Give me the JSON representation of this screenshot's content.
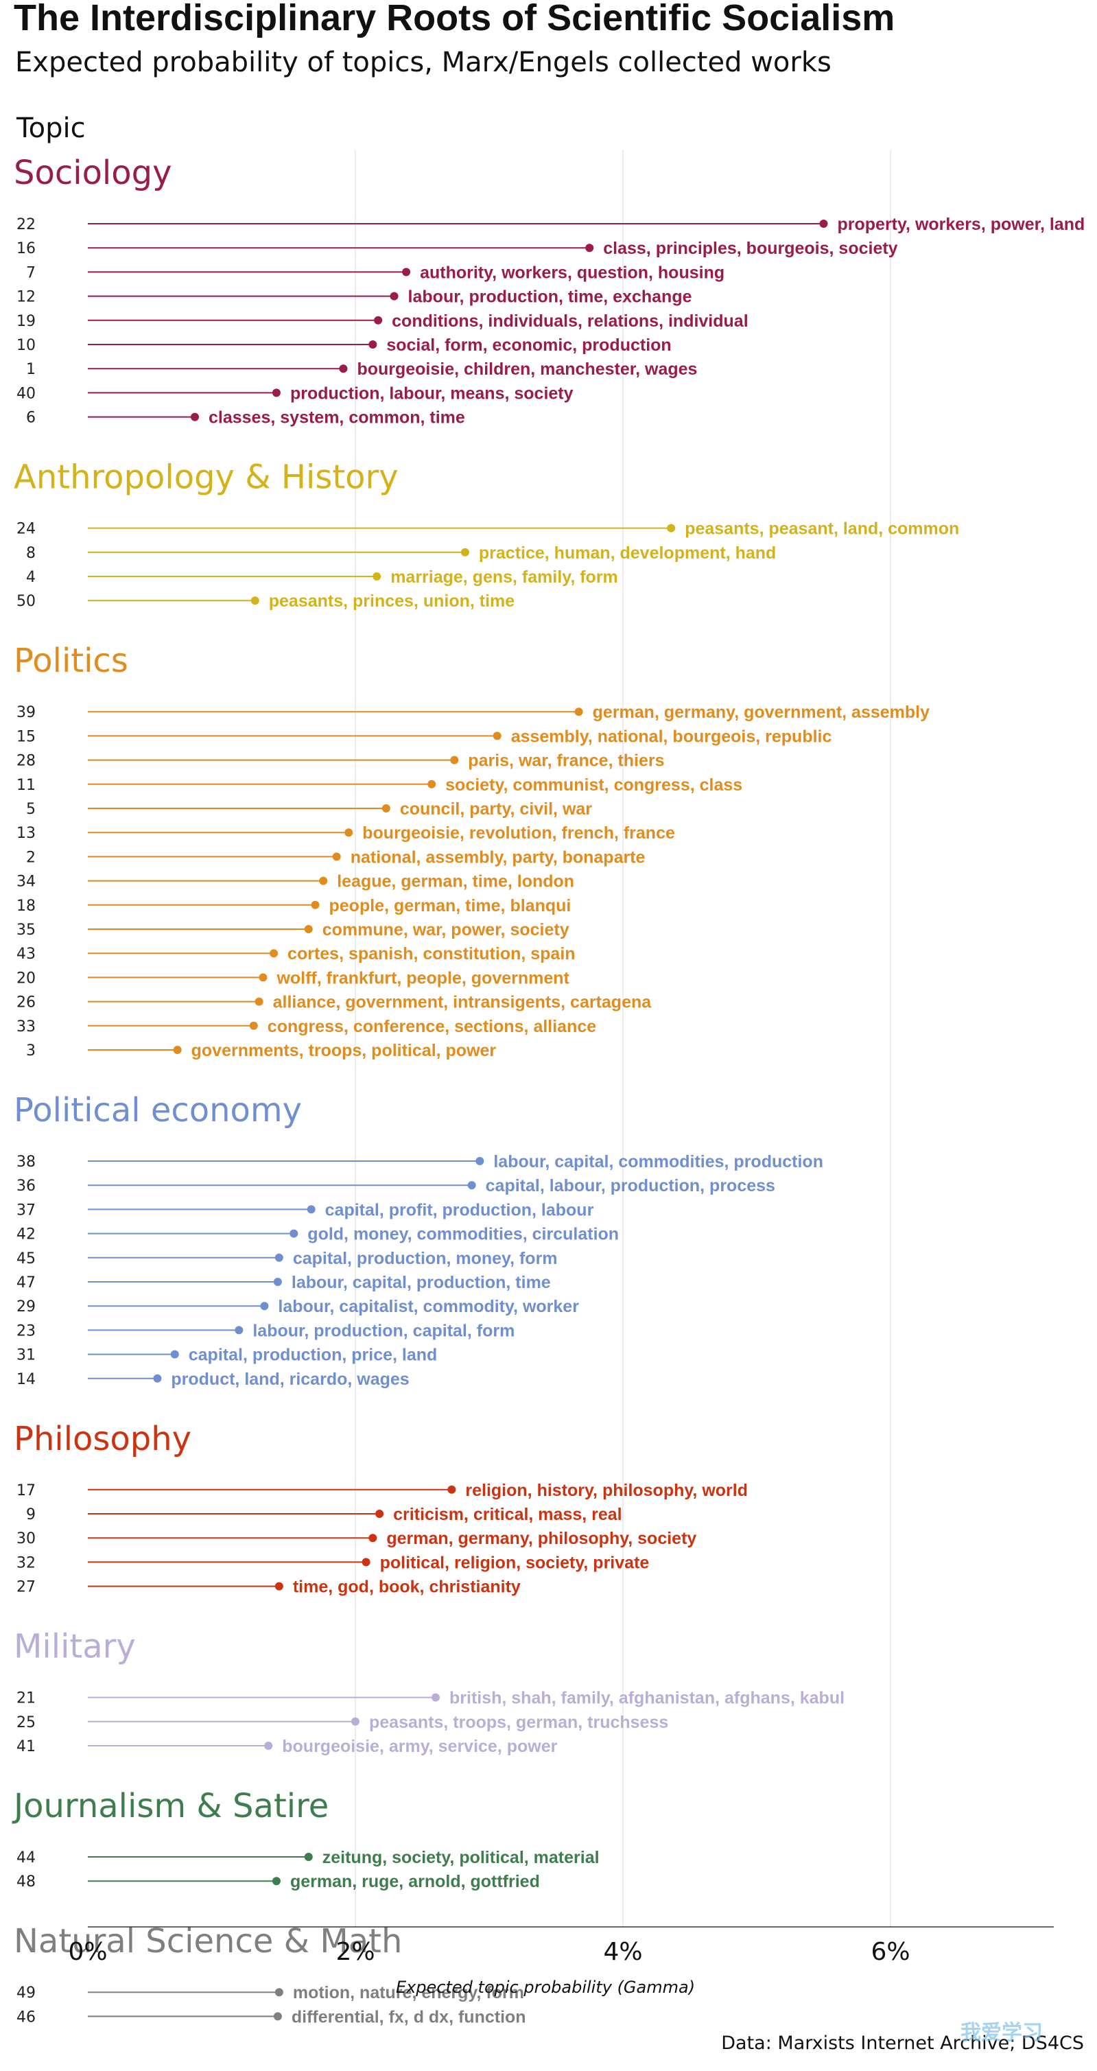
{
  "chart_data": {
    "type": "lollipop",
    "title": "The Interdisciplinary Roots of Scientific Socialism",
    "subtitle": "Expected probability of topics, Marx/Engels collected works",
    "facet_label": "Topic",
    "xlabel": "Expected topic probability (Gamma)",
    "caption": "Data: Marxists Internet Archive; DS4CS",
    "watermark": "我爱学习",
    "x_ticks": [
      {
        "value": 0,
        "label": "0%"
      },
      {
        "value": 0.02,
        "label": "2%"
      },
      {
        "value": 0.04,
        "label": "4%"
      },
      {
        "value": 0.06,
        "label": "6%"
      }
    ],
    "xlim": [
      0,
      0.072
    ],
    "grid": "vertical",
    "groups": [
      {
        "name": "Sociology",
        "color": "#9b1b4a",
        "topics": [
          {
            "id": "22",
            "label": "property, workers, power, land",
            "value": 0.055
          },
          {
            "id": "16",
            "label": "class, principles, bourgeois, society",
            "value": 0.0375
          },
          {
            "id": "7",
            "label": "authority, workers, question, housing",
            "value": 0.0238
          },
          {
            "id": "12",
            "label": "labour, production, time, exchange",
            "value": 0.0229
          },
          {
            "id": "19",
            "label": "conditions, individuals, relations, individual",
            "value": 0.0217
          },
          {
            "id": "10",
            "label": "social, form, economic, production",
            "value": 0.0213
          },
          {
            "id": "1",
            "label": "bourgeoisie, children, manchester, wages",
            "value": 0.0191
          },
          {
            "id": "40",
            "label": "production, labour, means, society",
            "value": 0.0141
          },
          {
            "id": "6",
            "label": "classes, system, common, time",
            "value": 0.008
          }
        ]
      },
      {
        "name": "Anthropology & History",
        "color": "#d4b21a",
        "topics": [
          {
            "id": "24",
            "label": "peasants, peasant, land, common",
            "value": 0.0436
          },
          {
            "id": "8",
            "label": "practice, human, development, hand",
            "value": 0.0282
          },
          {
            "id": "4",
            "label": "marriage, gens, family, form",
            "value": 0.0216
          },
          {
            "id": "50",
            "label": "peasants, princes, union, time",
            "value": 0.0125
          }
        ]
      },
      {
        "name": "Politics",
        "color": "#e08c1e",
        "topics": [
          {
            "id": "39",
            "label": "german, germany, government, assembly",
            "value": 0.0367
          },
          {
            "id": "15",
            "label": "assembly, national, bourgeois, republic",
            "value": 0.0306
          },
          {
            "id": "28",
            "label": "paris, war, france, thiers",
            "value": 0.0274
          },
          {
            "id": "11",
            "label": "society, communist, congress, class",
            "value": 0.0257
          },
          {
            "id": "5",
            "label": "council, party, civil, war",
            "value": 0.0223
          },
          {
            "id": "13",
            "label": "bourgeoisie, revolution, french, france",
            "value": 0.0195
          },
          {
            "id": "2",
            "label": "national, assembly, party, bonaparte",
            "value": 0.0186
          },
          {
            "id": "34",
            "label": "league, german, time, london",
            "value": 0.0176
          },
          {
            "id": "18",
            "label": "people, german, time, blanqui",
            "value": 0.017
          },
          {
            "id": "35",
            "label": "commune, war, power, society",
            "value": 0.0165
          },
          {
            "id": "43",
            "label": "cortes, spanish, constitution, spain",
            "value": 0.0139
          },
          {
            "id": "20",
            "label": "wolff, frankfurt, people, government",
            "value": 0.0131
          },
          {
            "id": "26",
            "label": "alliance, government, intransigents, cartagena",
            "value": 0.0128
          },
          {
            "id": "33",
            "label": "congress, conference, sections, alliance",
            "value": 0.0124
          },
          {
            "id": "3",
            "label": "governments, troops, political, power",
            "value": 0.0067
          }
        ]
      },
      {
        "name": "Political economy",
        "color": "#6f8fd0",
        "topics": [
          {
            "id": "38",
            "label": "labour, capital, commodities, production",
            "value": 0.0293
          },
          {
            "id": "36",
            "label": "capital, labour, production, process",
            "value": 0.0287
          },
          {
            "id": "37",
            "label": "capital, profit, production, labour",
            "value": 0.0167
          },
          {
            "id": "42",
            "label": "gold, money, commodities, circulation",
            "value": 0.0154
          },
          {
            "id": "45",
            "label": "capital, production, money, form",
            "value": 0.0143
          },
          {
            "id": "47",
            "label": "labour, capital, production, time",
            "value": 0.0142
          },
          {
            "id": "29",
            "label": "labour, capitalist, commodity, worker",
            "value": 0.0132
          },
          {
            "id": "23",
            "label": "labour, production, capital, form",
            "value": 0.0113
          },
          {
            "id": "31",
            "label": "capital, production, price, land",
            "value": 0.0065
          },
          {
            "id": "14",
            "label": "product, land, ricardo, wages",
            "value": 0.0052
          }
        ]
      },
      {
        "name": "Philosophy",
        "color": "#cc3311",
        "topics": [
          {
            "id": "17",
            "label": "religion, history, philosophy, world",
            "value": 0.0272
          },
          {
            "id": "9",
            "label": "criticism, critical, mass, real",
            "value": 0.0218
          },
          {
            "id": "30",
            "label": "german, germany, philosophy, society",
            "value": 0.0213
          },
          {
            "id": "32",
            "label": "political, religion, society, private",
            "value": 0.0208
          },
          {
            "id": "27",
            "label": "time, god, book, christianity",
            "value": 0.0143
          }
        ]
      },
      {
        "name": "Military",
        "color": "#b9aed6",
        "topics": [
          {
            "id": "21",
            "label": "british, shah, family, afghanistan, afghans, kabul",
            "value": 0.026
          },
          {
            "id": "25",
            "label": "peasants, troops, german, truchsess",
            "value": 0.02
          },
          {
            "id": "41",
            "label": "bourgeoisie, army, service, power",
            "value": 0.0135
          }
        ]
      },
      {
        "name": "Journalism & Satire",
        "color": "#3e7d4e",
        "topics": [
          {
            "id": "44",
            "label": "zeitung, society, political, material",
            "value": 0.0165
          },
          {
            "id": "48",
            "label": "german, ruge, arnold, gottfried",
            "value": 0.0141
          }
        ]
      },
      {
        "name": "Natural Science & Math",
        "color": "#7f7f7f",
        "topics": [
          {
            "id": "49",
            "label": "motion, nature, energy, form",
            "value": 0.0143
          },
          {
            "id": "46",
            "label": "differential, fx, d  dx, function",
            "value": 0.0142
          }
        ]
      }
    ]
  }
}
